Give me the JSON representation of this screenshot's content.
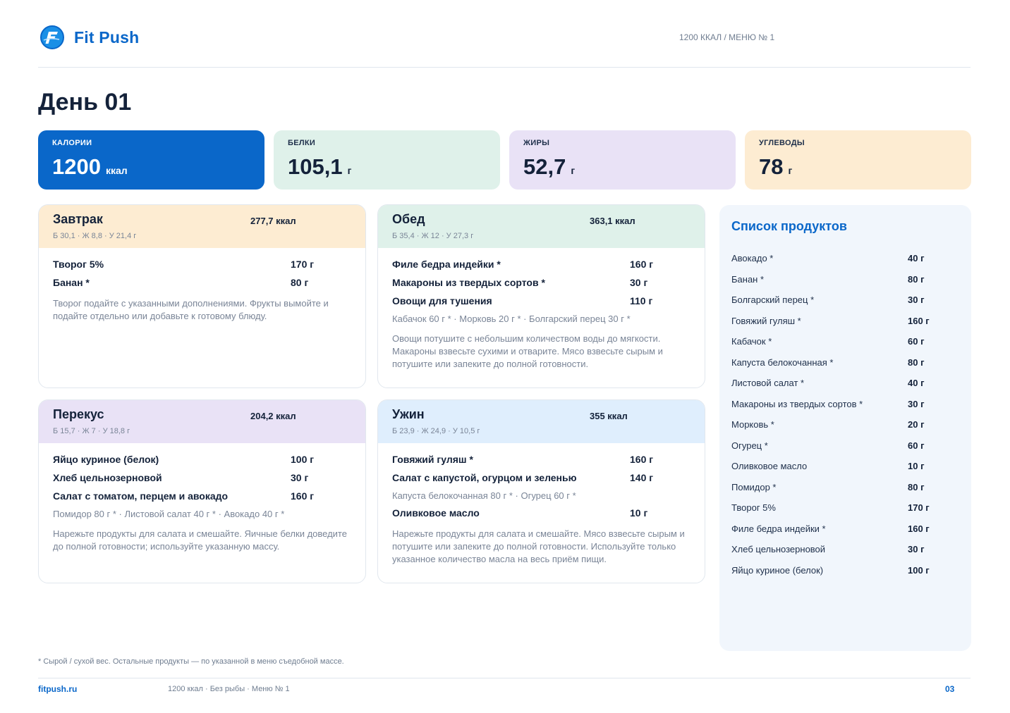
{
  "brand": {
    "name": "Fit Push",
    "logo_icon": "fitpush-logo-icon"
  },
  "menu_code": "1200 ККАЛ / МЕНЮ № 1",
  "page_title": "День 01",
  "colors": {
    "accent": "#0a67c9",
    "protein": "#dff1ea",
    "fat": "#e9e2f6",
    "carbs": "#fdecd2",
    "dinner": "#dfeefd"
  },
  "macros": {
    "calories": {
      "label": "КАЛОРИИ",
      "value": "1200",
      "unit": "ккал"
    },
    "protein": {
      "label": "БЕЛКИ",
      "value": "105,1",
      "unit": "г"
    },
    "fat": {
      "label": "ЖИРЫ",
      "value": "52,7",
      "unit": "г"
    },
    "carbs": {
      "label": "УГЛЕВОДЫ",
      "value": "78",
      "unit": "г"
    }
  },
  "meals": {
    "breakfast": {
      "title": "Завтрак",
      "kcal": "277,7 ккал",
      "macros": "Б 30,1 · Ж 8,8 · У 21,4 г",
      "items": [
        {
          "name": "Творог 5%",
          "amount": "170 г"
        },
        {
          "name": "Банан *",
          "amount": "80 г"
        }
      ],
      "note": "Творог подайте с указанными дополнениями. Фрукты вымойте и подайте отдельно или добавьте к готовому блюду."
    },
    "lunch": {
      "title": "Обед",
      "kcal": "363,1 ккал",
      "macros": "Б 35,4 · Ж 12 · У 27,3 г",
      "items": [
        {
          "name": "Филе бедра индейки *",
          "amount": "160 г"
        },
        {
          "name": "Макароны из твердых сортов *",
          "amount": "30 г"
        },
        {
          "name": "Овощи для тушения",
          "amount": "110 г"
        }
      ],
      "sub": "Кабачок 60 г * · Морковь 20 г * · Болгарский перец 30 г *",
      "note": "Овощи потушите с небольшим количеством воды до мягкости. Макароны взвесьте сухими и отварите. Мясо взвесьте сырым и потушите или запеките до полной готовности."
    },
    "snack": {
      "title": "Перекус",
      "kcal": "204,2 ккал",
      "macros": "Б 15,7 · Ж 7 · У 18,8 г",
      "items": [
        {
          "name": "Яйцо куриное (белок)",
          "amount": "100 г"
        },
        {
          "name": "Хлеб цельнозерновой",
          "amount": "30 г"
        },
        {
          "name": "Салат с томатом, перцем и авокадо",
          "amount": "160 г"
        }
      ],
      "sub": "Помидор 80 г * · Листовой салат 40 г * · Авокадо 40 г *",
      "note": "Нарежьте продукты для салата и смешайте. Яичные белки доведите до полной готовности; используйте указанную массу."
    },
    "dinner": {
      "title": "Ужин",
      "kcal": "355 ккал",
      "macros": "Б 23,9 · Ж 24,9 · У 10,5 г",
      "items": [
        {
          "name": "Говяжий гуляш *",
          "amount": "160 г"
        },
        {
          "name": "Салат с капустой, огурцом и зеленью",
          "amount": "140 г"
        }
      ],
      "sub": "Капуста белокочанная 80 г * · Огурец 60 г *",
      "item_extra": {
        "name": "Оливковое масло",
        "amount": "10 г"
      },
      "note": "Нарежьте продукты для салата и смешайте. Мясо взвесьте сырым и потушите или запеките до полной готовности. Используйте только указанное количество масла на весь приём пищи."
    }
  },
  "products": {
    "title": "Список продуктов",
    "items": [
      {
        "name": "Авокадо *",
        "amount": "40 г"
      },
      {
        "name": "Банан *",
        "amount": "80 г"
      },
      {
        "name": "Болгарский перец *",
        "amount": "30 г"
      },
      {
        "name": "Говяжий гуляш *",
        "amount": "160 г"
      },
      {
        "name": "Кабачок *",
        "amount": "60 г"
      },
      {
        "name": "Капуста белокочанная *",
        "amount": "80 г"
      },
      {
        "name": "Листовой салат *",
        "amount": "40 г"
      },
      {
        "name": "Макароны из твердых сортов *",
        "amount": "30 г"
      },
      {
        "name": "Морковь *",
        "amount": "20 г"
      },
      {
        "name": "Огурец *",
        "amount": "60 г"
      },
      {
        "name": "Оливковое масло",
        "amount": "10 г"
      },
      {
        "name": "Помидор *",
        "amount": "80 г"
      },
      {
        "name": "Творог 5%",
        "amount": "170 г"
      },
      {
        "name": "Филе бедра индейки *",
        "amount": "160 г"
      },
      {
        "name": "Хлеб цельнозерновой",
        "amount": "30 г"
      },
      {
        "name": "Яйцо куриное (белок)",
        "amount": "100 г"
      }
    ]
  },
  "footer": {
    "footnote": "* Сырой / сухой вес. Остальные продукты — по указанной в меню съедобной массе.",
    "site": "fitpush.ru",
    "info": "1200 ккал · Без рыбы · Меню № 1",
    "page": "03"
  }
}
